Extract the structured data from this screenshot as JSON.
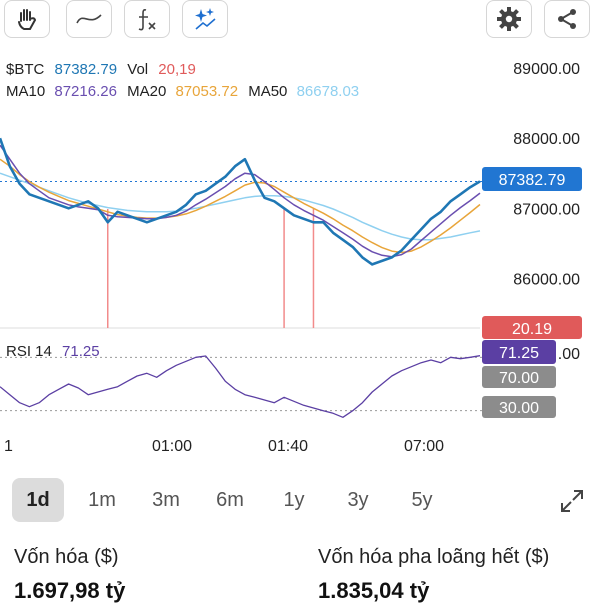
{
  "toolbar": {
    "left_icons": [
      "hand-icon",
      "line-tool-icon",
      "function-icon",
      "sparkle-icon"
    ],
    "right_icons": [
      "gear-icon",
      "share-icon"
    ]
  },
  "header": {
    "symbol": "$BTC",
    "price": "87382.79",
    "vol_label": "Vol",
    "vol_value": "20,19",
    "ma10_label": "MA10",
    "ma10_value": "87216.26",
    "ma20_label": "MA20",
    "ma20_value": "87053.72",
    "ma50_label": "MA50",
    "ma50_value": "86678.03"
  },
  "rsi": {
    "label": "RSI 14",
    "value": "71.25"
  },
  "badges": {
    "price": "87382.79",
    "vol": "20.19",
    "rsi": "71.25",
    "rsi_high": "70.00",
    "rsi_low": "30.00",
    "partial_axis": ".00"
  },
  "colors": {
    "price_line": "#1f77b4",
    "ma10": "#6a4fb0",
    "ma20": "#e8a53a",
    "ma50": "#8fd0f0",
    "rsi_line": "#5b3fa3",
    "vol_bar": "#f28b8b",
    "price_badge": "#2176d2",
    "vol_badge": "#e05a5a",
    "rsi_badge": "#5b3fa3",
    "level_badge": "#8c8c8c"
  },
  "chart_data": {
    "type": "line",
    "y_ticks": [
      "89000.00",
      "88000.00",
      "87000.00",
      "86000.00"
    ],
    "ylim": [
      85350,
      89200
    ],
    "x_ticks": [
      "1",
      "01:00",
      "01:40",
      "07:00"
    ],
    "series": [
      {
        "name": "$BTC",
        "values": [
          88000,
          87600,
          87350,
          87200,
          87150,
          87100,
          87050,
          87000,
          87050,
          87100,
          87000,
          86800,
          86950,
          86900,
          86850,
          86800,
          86850,
          86900,
          86950,
          87050,
          87200,
          87250,
          87350,
          87450,
          87600,
          87700,
          87400,
          87150,
          87100,
          87000,
          86900,
          86850,
          86800,
          86800,
          86650,
          86550,
          86450,
          86300,
          86200,
          86250,
          86300,
          86400,
          86550,
          86700,
          86850,
          86950,
          87100,
          87200,
          87300,
          87383
        ]
      },
      {
        "name": "MA10",
        "values": [
          87900,
          87700,
          87500,
          87350,
          87250,
          87150,
          87100,
          87050,
          87020,
          87000,
          86980,
          86900,
          86880,
          86870,
          86860,
          86850,
          86850,
          86870,
          86900,
          86960,
          87050,
          87130,
          87220,
          87310,
          87420,
          87500,
          87480,
          87380,
          87270,
          87150,
          87050,
          86970,
          86900,
          86830,
          86740,
          86650,
          86560,
          86460,
          86380,
          86330,
          86310,
          86340,
          86420,
          86540,
          86660,
          86780,
          86900,
          87010,
          87110,
          87216
        ]
      },
      {
        "name": "MA20",
        "values": [
          87700,
          87600,
          87480,
          87380,
          87300,
          87230,
          87170,
          87110,
          87070,
          87030,
          86990,
          86950,
          86910,
          86890,
          86870,
          86860,
          86860,
          86870,
          86890,
          86920,
          86970,
          87030,
          87100,
          87170,
          87250,
          87330,
          87370,
          87360,
          87310,
          87230,
          87150,
          87070,
          87000,
          86930,
          86850,
          86760,
          86680,
          86590,
          86510,
          86440,
          86390,
          86370,
          86390,
          86450,
          86530,
          86620,
          86720,
          86830,
          86940,
          87054
        ]
      },
      {
        "name": "MA50",
        "values": [
          87500,
          87450,
          87400,
          87350,
          87300,
          87250,
          87200,
          87150,
          87110,
          87070,
          87040,
          87010,
          86990,
          86970,
          86960,
          86950,
          86950,
          86950,
          86960,
          86980,
          87000,
          87030,
          87060,
          87090,
          87120,
          87150,
          87170,
          87180,
          87180,
          87170,
          87150,
          87120,
          87080,
          87040,
          86990,
          86930,
          86870,
          86800,
          86740,
          86680,
          86630,
          86590,
          86560,
          86550,
          86550,
          86570,
          86590,
          86620,
          86650,
          86678
        ]
      },
      {
        "name": "RSI 14",
        "values": [
          48,
          42,
          36,
          33,
          36,
          42,
          46,
          50,
          47,
          42,
          44,
          46,
          48,
          52,
          56,
          58,
          55,
          60,
          64,
          67,
          70,
          71,
          62,
          52,
          46,
          42,
          40,
          38,
          36,
          40,
          37,
          34,
          32,
          30,
          28,
          25,
          30,
          36,
          44,
          50,
          56,
          60,
          63,
          66,
          68,
          66,
          70,
          69,
          70,
          71.25
        ]
      }
    ],
    "volume_spikes": [
      {
        "x_index": 11,
        "value": 20.19
      },
      {
        "x_index": 29,
        "value": 20.19
      },
      {
        "x_index": 32,
        "value": 20.19
      }
    ]
  },
  "period_tabs": [
    {
      "label": "1d",
      "active": true
    },
    {
      "label": "1m",
      "active": false
    },
    {
      "label": "3m",
      "active": false
    },
    {
      "label": "6m",
      "active": false
    },
    {
      "label": "1y",
      "active": false
    },
    {
      "label": "3y",
      "active": false
    },
    {
      "label": "5y",
      "active": false
    }
  ],
  "stats": {
    "market_cap_label": "Vốn hóa ($)",
    "market_cap_value": "1.697,98 tỷ",
    "fdv_label": "Vốn hóa pha loãng hết ($)",
    "fdv_value": "1.835,04 tỷ"
  }
}
